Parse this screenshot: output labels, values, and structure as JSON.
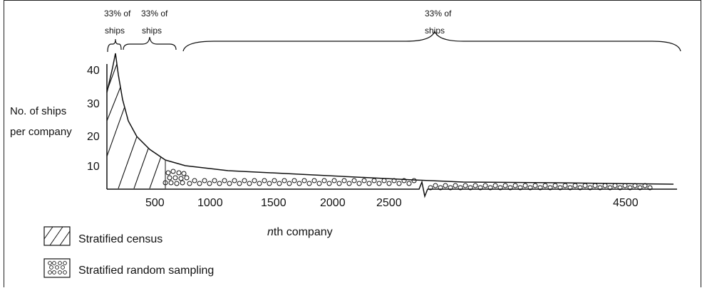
{
  "brackets": [
    {
      "line1": "33% of",
      "line2": "ships"
    },
    {
      "line1": "33% of",
      "line2": "ships"
    },
    {
      "line1": "33% of",
      "line2": "ships"
    }
  ],
  "y_axis": {
    "label_line1": "No. of ships",
    "label_line2": "per company",
    "ticks": [
      "40",
      "30",
      "20",
      "10"
    ]
  },
  "x_axis": {
    "label_prefix": "n",
    "label_suffix": "th company",
    "ticks": [
      "500",
      "1000",
      "1500",
      "2000",
      "2500",
      "4500"
    ]
  },
  "legend": [
    {
      "label": "Stratified census",
      "pattern": "hatch"
    },
    {
      "label": "Stratified random sampling",
      "pattern": "circles"
    }
  ]
}
